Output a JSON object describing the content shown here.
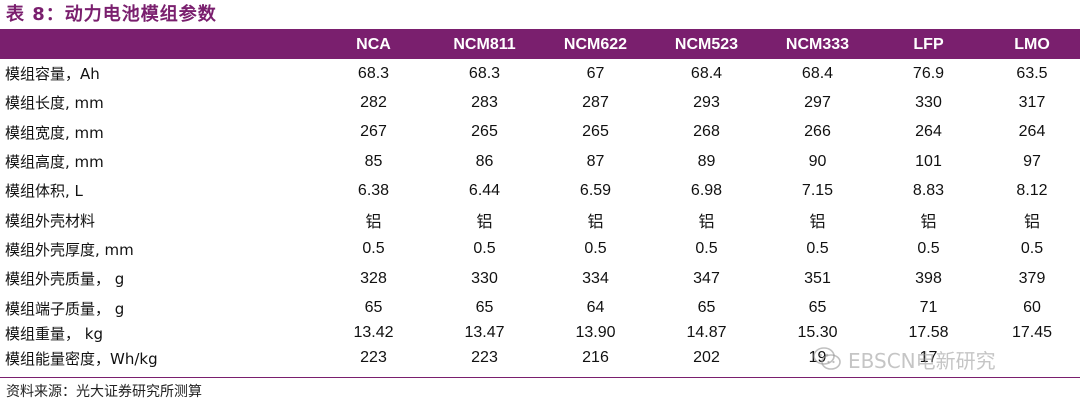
{
  "title": "表 8：动力电池模组参数",
  "columns": [
    "",
    "NCA",
    "NCM811",
    "NCM622",
    "NCM523",
    "NCM333",
    "LFP",
    "LMO"
  ],
  "rows": [
    {
      "label": "模组容量，Ah",
      "values": [
        "68.3",
        "68.3",
        "67",
        "68.4",
        "68.4",
        "76.9",
        "63.5"
      ]
    },
    {
      "label": "模组长度, mm",
      "values": [
        "282",
        "283",
        "287",
        "293",
        "297",
        "330",
        "317"
      ]
    },
    {
      "label": "模组宽度, mm",
      "values": [
        "267",
        "265",
        "265",
        "268",
        "266",
        "264",
        "264"
      ]
    },
    {
      "label": "模组高度, mm",
      "values": [
        "85",
        "86",
        "87",
        "89",
        "90",
        "101",
        "97"
      ]
    },
    {
      "label": "模组体积, L",
      "values": [
        "6.38",
        "6.44",
        "6.59",
        "6.98",
        "7.15",
        "8.83",
        "8.12"
      ]
    },
    {
      "label": "模组外壳材料",
      "values": [
        "铝",
        "铝",
        "铝",
        "铝",
        "铝",
        "铝",
        "铝"
      ]
    },
    {
      "label": "模组外壳厚度, mm",
      "values": [
        "0.5",
        "0.5",
        "0.5",
        "0.5",
        "0.5",
        "0.5",
        "0.5"
      ]
    },
    {
      "label": "模组外壳质量， g",
      "values": [
        "328",
        "330",
        "334",
        "347",
        "351",
        "398",
        "379"
      ]
    },
    {
      "label": "模组端子质量， g",
      "values": [
        "65",
        "65",
        "64",
        "65",
        "65",
        "71",
        "60"
      ]
    },
    {
      "label": "模组重量， kg",
      "values": [
        "13.42",
        "13.47",
        "13.90",
        "14.87",
        "15.30",
        "17.58",
        "17.45"
      ]
    },
    {
      "label": "模组能量密度，Wh/kg",
      "values": [
        "223",
        "223",
        "216",
        "202",
        "19",
        "17",
        ""
      ]
    }
  ],
  "source": "资料来源：光大证券研究所测算",
  "watermark": "EBSCN电新研究",
  "watermark_icon": "wechat-icon",
  "colors": {
    "accent": "#7a1f6e",
    "header_text": "#ffffff"
  }
}
